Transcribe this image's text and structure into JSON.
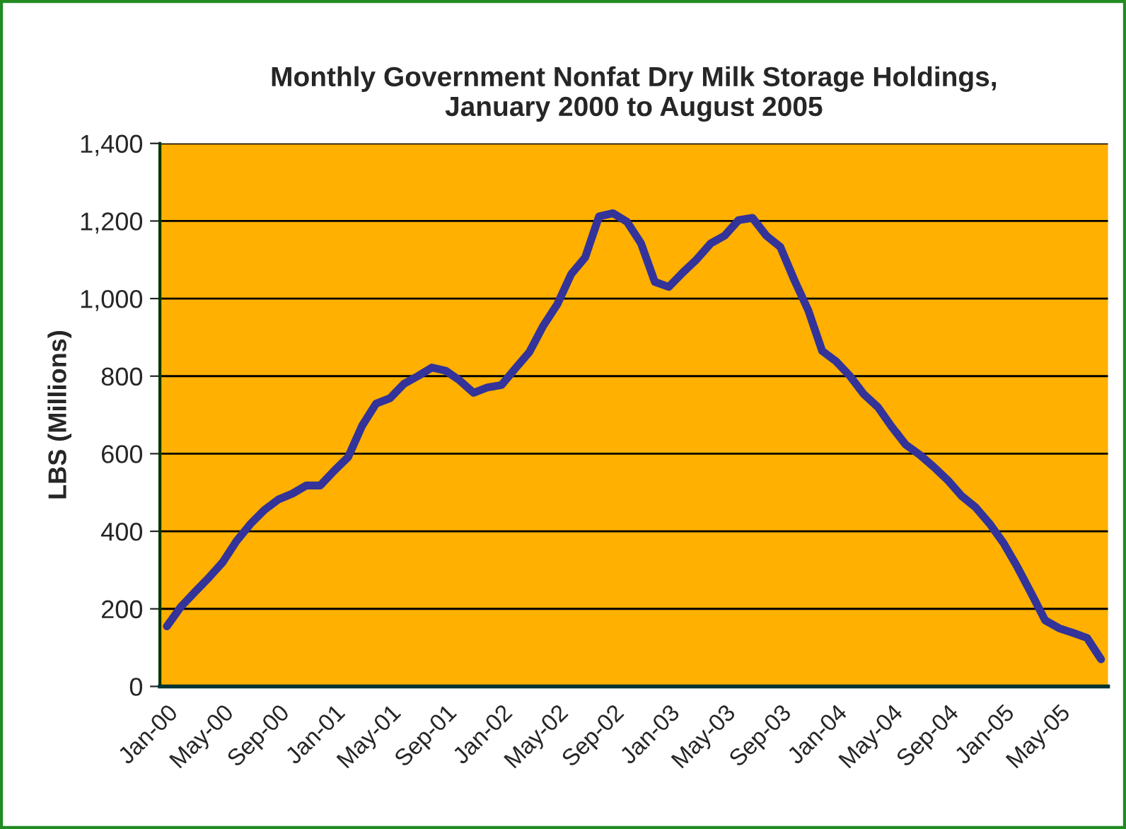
{
  "chart_data": {
    "type": "line",
    "title": "Monthly Government Nonfat Dry Milk Storage Holdings,\nJanuary 2000 to August 2005",
    "ylabel": "LBS (Millions)",
    "categories": [
      "Jan-00",
      null,
      null,
      null,
      "May-00",
      null,
      null,
      null,
      "Sep-00",
      null,
      null,
      null,
      "Jan-01",
      null,
      null,
      null,
      "May-01",
      null,
      null,
      null,
      "Sep-01",
      null,
      null,
      null,
      "Jan-02",
      null,
      null,
      null,
      "May-02",
      null,
      null,
      null,
      "Sep-02",
      null,
      null,
      null,
      "Jan-03",
      null,
      null,
      null,
      "May-03",
      null,
      null,
      null,
      "Sep-03",
      null,
      null,
      null,
      "Jan-04",
      null,
      null,
      null,
      "May-04",
      null,
      null,
      null,
      "Sep-04",
      null,
      null,
      null,
      "Jan-05",
      null,
      null,
      null,
      "May-05",
      null,
      null,
      null
    ],
    "series": [
      {
        "color": "#333399",
        "values": [
          155,
          205,
          243,
          280,
          320,
          375,
          419,
          455,
          482,
          497,
          518,
          518,
          556,
          591,
          672,
          729,
          743,
          780,
          800,
          822,
          814,
          789,
          757,
          771,
          777,
          820,
          862,
          930,
          985,
          1063,
          1106,
          1212,
          1220,
          1198,
          1143,
          1043,
          1030,
          1067,
          1101,
          1142,
          1162,
          1202,
          1208,
          1162,
          1133,
          1048,
          970,
          865,
          838,
          800,
          753,
          720,
          669,
          623,
          597,
          566,
          532,
          491,
          462,
          420,
          370,
          308,
          240,
          170,
          150,
          138,
          125,
          70
        ]
      }
    ],
    "ylim": [
      0,
      1400
    ],
    "yticks": [
      0,
      200,
      400,
      600,
      800,
      {
        "value": 1000,
        "label": "1,000"
      },
      {
        "value": 1200,
        "label": "1,200"
      },
      {
        "value": 1400,
        "label": "1,400"
      }
    ],
    "grid": "y",
    "marker": "none",
    "line_style": "solid"
  }
}
